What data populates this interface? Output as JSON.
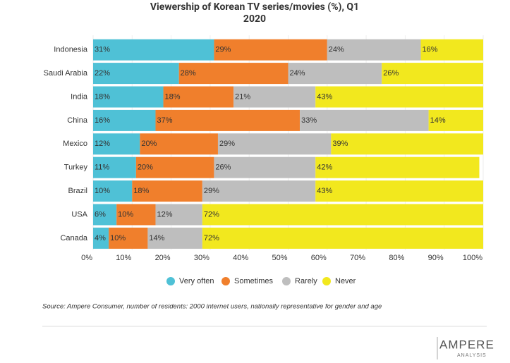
{
  "chart_data": {
    "type": "stacked-bar-horizontal",
    "title": "Viewership of Korean TV series/movies (%), Q1 2020",
    "categories": [
      "Indonesia",
      "Saudi Arabia",
      "India",
      "China",
      "Mexico",
      "Turkey",
      "Brazil",
      "USA",
      "Canada"
    ],
    "series": [
      {
        "name": "Very often",
        "color": "#4fc1d6",
        "values": [
          31,
          22,
          18,
          16,
          12,
          11,
          10,
          6,
          4
        ],
        "value_labels": [
          "31%",
          "22%",
          "18%",
          "16%",
          "12%",
          "11%",
          "10%",
          "6%",
          "4%"
        ]
      },
      {
        "name": "Sometimes",
        "color": "#f07f2c",
        "values": [
          29,
          28,
          18,
          37,
          20,
          20,
          18,
          10,
          10
        ],
        "value_labels": [
          "29%",
          "28%",
          "18%",
          "37%",
          "20%",
          "20%",
          "18%",
          "10%",
          "10%"
        ]
      },
      {
        "name": "Rarely",
        "color": "#bebebe",
        "values": [
          24,
          24,
          21,
          33,
          29,
          26,
          29,
          12,
          14
        ],
        "value_labels": [
          "24%",
          "24%",
          "21%",
          "33%",
          "29%",
          "26%",
          "29%",
          "12%",
          "14%"
        ]
      },
      {
        "name": "Never",
        "color": "#f2e81e",
        "values": [
          16,
          26,
          43,
          14,
          39,
          42,
          43,
          72,
          72
        ],
        "value_labels": [
          "16%",
          "26%",
          "43%",
          "14%",
          "39%",
          "42%",
          "43%",
          "72%",
          "72%"
        ]
      }
    ],
    "xlim": [
      0,
      100
    ],
    "xticks": [
      {
        "value": 0,
        "label": "0%"
      },
      {
        "value": 10,
        "label": "10%"
      },
      {
        "value": 20,
        "label": "20%"
      },
      {
        "value": 30,
        "label": "30%"
      },
      {
        "value": 40,
        "label": "40%"
      },
      {
        "value": 50,
        "label": "50%"
      },
      {
        "value": 60,
        "label": "60%"
      },
      {
        "value": 70,
        "label": "70%"
      },
      {
        "value": 80,
        "label": "80%"
      },
      {
        "value": 90,
        "label": "90%"
      },
      {
        "value": 100,
        "label": "100%"
      }
    ],
    "source": "Source: Ampere Consumer, number of  residents: 2000 internet users, nationally representative for gender and age",
    "logo": "AMPERE",
    "logo_sub": "ANALYSIS"
  }
}
